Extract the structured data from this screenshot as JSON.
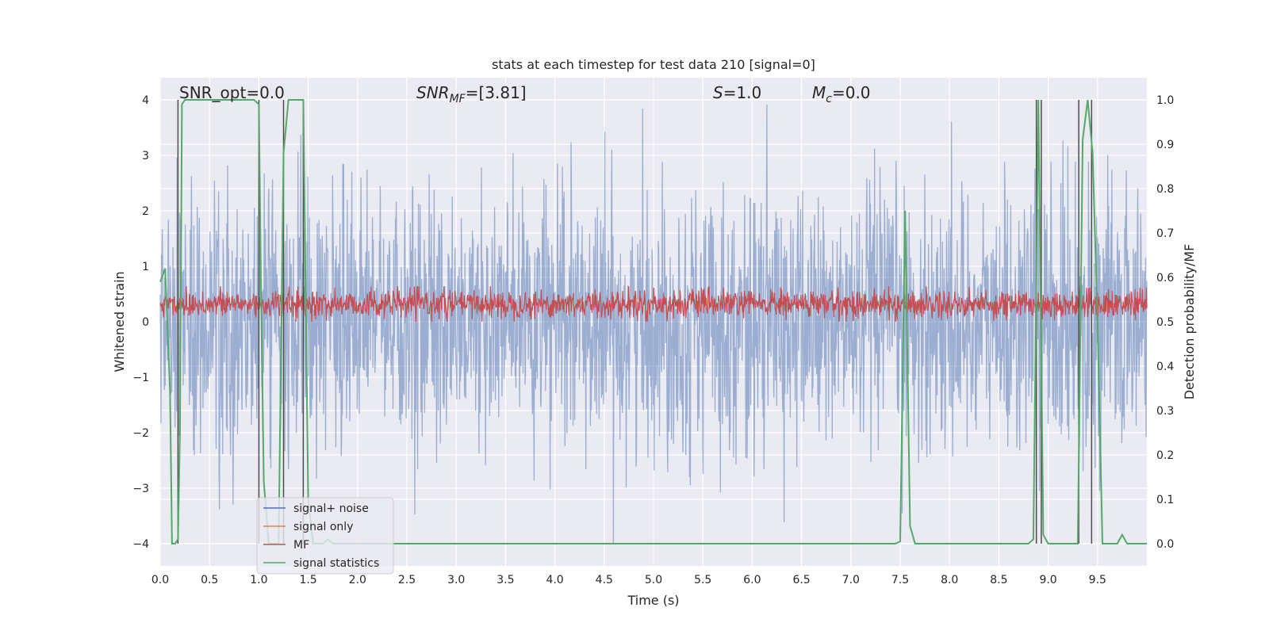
{
  "chart_data": {
    "type": "line",
    "title": "stats at each timestep for test data 210 [signal=0]",
    "xlabel": "Time (s)",
    "ylabel_left": "Whitened strain",
    "ylabel_right": "Detection probability/MF",
    "xlim": [
      0.0,
      10.0
    ],
    "ylim_left": [
      -4.4,
      4.4
    ],
    "ylim_right": [
      -0.05,
      1.05
    ],
    "xticks": [
      "0.0",
      "0.5",
      "1.0",
      "1.5",
      "2.0",
      "2.5",
      "3.0",
      "3.5",
      "4.0",
      "4.5",
      "5.0",
      "5.5",
      "6.0",
      "6.5",
      "7.0",
      "7.5",
      "8.0",
      "8.5",
      "9.0",
      "9.5"
    ],
    "yticks_left": [
      "−4",
      "−3",
      "−2",
      "−1",
      "0",
      "1",
      "2",
      "3",
      "4"
    ],
    "yticks_right": [
      "0.0",
      "0.1",
      "0.2",
      "0.3",
      "0.4",
      "0.5",
      "0.6",
      "0.7",
      "0.8",
      "0.9",
      "1.0"
    ],
    "grid": true,
    "background": "#eaeaf2",
    "annotations": {
      "snr_opt": "SNR_opt=0.0",
      "snr_mf_prefix": "SNR",
      "snr_mf_sub": "MF",
      "snr_mf_suffix": "=[3.81]",
      "s_prefix": "S",
      "s_suffix": "=1.0",
      "mc_prefix": "M",
      "mc_sub": "c",
      "mc_suffix": "=0.0"
    },
    "legend": {
      "placement": "lower-left",
      "entries": [
        {
          "label": "signal+ noise",
          "color": "#4c72b0"
        },
        {
          "label": "signal only",
          "color": "#dd8452"
        },
        {
          "label": "MF",
          "color": "#c44e52"
        },
        {
          "label": "signal statistics",
          "color": "#55a868"
        }
      ]
    },
    "series": [
      {
        "name": "signal+ noise",
        "axis": "left",
        "color": "#4c72b0",
        "alpha": 0.5,
        "description": "whitened strain noise, approx range -4 to 4"
      },
      {
        "name": "signal only",
        "axis": "left",
        "color": "#dd8452",
        "values": []
      },
      {
        "name": "MF",
        "axis": "right",
        "color": "#c44e52",
        "range": [
          0.5,
          0.58
        ]
      },
      {
        "name": "signal statistics",
        "axis": "right",
        "color": "#55a868",
        "x": [
          0.0,
          0.05,
          0.1,
          0.12,
          0.15,
          0.18,
          0.2,
          0.22,
          0.25,
          0.3,
          0.5,
          0.8,
          0.95,
          1.0,
          1.02,
          1.05,
          1.1,
          1.15,
          1.2,
          1.25,
          1.3,
          1.35,
          1.45,
          1.5,
          1.55,
          1.6,
          1.65,
          1.7,
          1.75,
          1.8,
          2.0,
          3.0,
          4.0,
          5.0,
          6.0,
          7.0,
          7.45,
          7.5,
          7.55,
          7.6,
          7.65,
          7.7,
          8.0,
          8.5,
          8.8,
          8.85,
          8.9,
          8.95,
          9.0,
          9.05,
          9.1,
          9.2,
          9.3,
          9.35,
          9.4,
          9.45,
          9.5,
          9.55,
          9.6,
          9.7,
          9.75,
          9.8,
          9.9,
          10.0
        ],
        "values": [
          0.59,
          0.62,
          0.34,
          0.0,
          0.0,
          0.01,
          0.25,
          0.99,
          1.0,
          1.0,
          1.0,
          1.0,
          1.0,
          0.99,
          0.6,
          0.14,
          0.0,
          0.0,
          0.0,
          0.88,
          1.0,
          1.0,
          1.0,
          0.1,
          0.0,
          0.0,
          0.0,
          0.01,
          0.0,
          0.0,
          0.0,
          0.0,
          0.0,
          0.0,
          0.0,
          0.0,
          0.0,
          0.005,
          0.75,
          0.04,
          0.0,
          0.0,
          0.0,
          0.0,
          0.0,
          0.01,
          1.0,
          0.02,
          0.0,
          0.0,
          0.0,
          0.0,
          0.0,
          0.91,
          1.0,
          0.88,
          0.5,
          0.0,
          0.0,
          0.0,
          0.02,
          0.0,
          0.0,
          0.0
        ]
      }
    ],
    "vertical_lines_x": [
      0.18,
      1.0,
      1.25,
      1.45,
      8.88,
      8.93,
      9.31,
      9.44
    ]
  }
}
